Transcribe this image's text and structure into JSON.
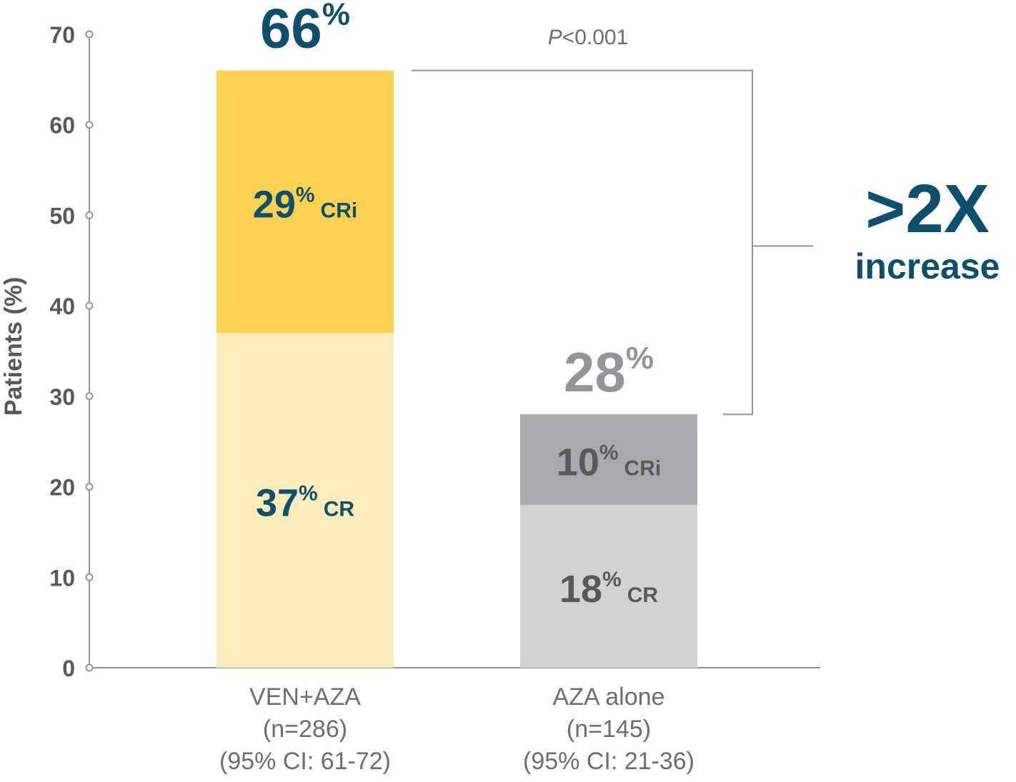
{
  "chart_data": {
    "type": "bar",
    "stacked": true,
    "title": "",
    "xlabel": "",
    "ylabel": "Patients (%)",
    "ylim": [
      0,
      70
    ],
    "yticks": [
      0,
      10,
      20,
      30,
      40,
      50,
      60,
      70
    ],
    "categories": [
      {
        "name": "VEN+AZA",
        "n": "(n=286)",
        "ci": "(95% CI: 61-72)"
      },
      {
        "name": "AZA alone",
        "n": "(n=145)",
        "ci": "(95% CI: 21-36)"
      }
    ],
    "series": [
      {
        "name": "CR",
        "values": [
          37,
          18
        ],
        "labels": [
          "37",
          "18"
        ],
        "pct": "%",
        "colors": [
          "#FDEBBC",
          "#D1D2D4"
        ],
        "text_colors": [
          "#0E4F6B",
          "#58595B"
        ]
      },
      {
        "name": "CRi",
        "values": [
          29,
          10
        ],
        "labels": [
          "29",
          "10"
        ],
        "pct": "%",
        "colors": [
          "#FAD151",
          "#A7A9AC"
        ],
        "text_colors": [
          "#0E4F6B",
          "#58595B"
        ]
      }
    ],
    "totals": [
      {
        "value": 66,
        "label": "66",
        "pct": "%",
        "color": "#0E4F6B"
      },
      {
        "value": 28,
        "label": "28",
        "pct": "%",
        "color": "#939598"
      }
    ],
    "annotations": {
      "p_italic": "P",
      "p_rest": "<0.001",
      "increase_big": ">2X",
      "increase_word": "increase",
      "increase_color": "#0E4F6B"
    },
    "grid": false,
    "legend": "none"
  }
}
